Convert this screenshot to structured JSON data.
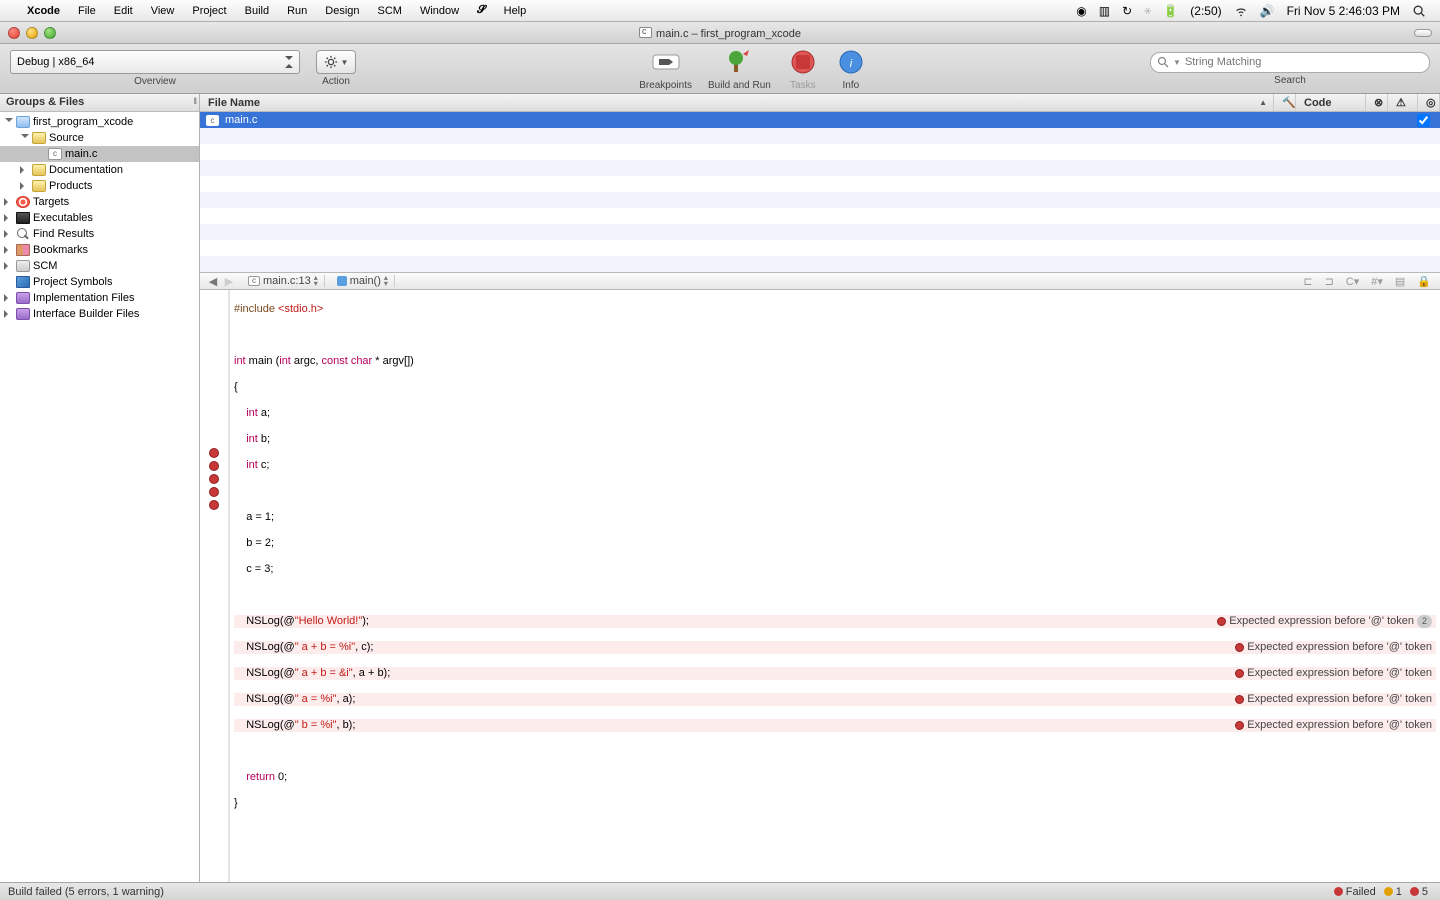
{
  "menubar": {
    "app": "Xcode",
    "items": [
      "File",
      "Edit",
      "View",
      "Project",
      "Build",
      "Run",
      "Design",
      "SCM",
      "Window"
    ],
    "helpGlyph": "⌘",
    "help": "Help",
    "battery": "(2:50)",
    "clock": "Fri Nov 5  2:46:03 PM"
  },
  "window": {
    "title": "main.c – first_program_xcode"
  },
  "toolbar": {
    "config": "Debug | x86_64",
    "overview": "Overview",
    "action": "Action",
    "breakpoints": "Breakpoints",
    "buildrun": "Build and Run",
    "tasks": "Tasks",
    "info": "Info",
    "searchPlaceholder": "String Matching",
    "search": "Search"
  },
  "sidebar": {
    "header": "Groups & Files",
    "items": [
      {
        "pad": 0,
        "icon": "folder",
        "label": "first_program_xcode",
        "disc": "open"
      },
      {
        "pad": 1,
        "icon": "yfolder",
        "label": "Source",
        "disc": "open"
      },
      {
        "pad": 2,
        "icon": "c",
        "label": "main.c",
        "sel": true
      },
      {
        "pad": 1,
        "icon": "yfolder",
        "label": "Documentation",
        "disc": "closed"
      },
      {
        "pad": 1,
        "icon": "yfolder",
        "label": "Products",
        "disc": "closed"
      },
      {
        "pad": 0,
        "icon": "target",
        "label": "Targets",
        "disc": "closed"
      },
      {
        "pad": 0,
        "icon": "exec",
        "label": "Executables",
        "disc": "closed"
      },
      {
        "pad": 0,
        "icon": "mag",
        "label": "Find Results",
        "disc": "closed"
      },
      {
        "pad": 0,
        "icon": "book",
        "label": "Bookmarks",
        "disc": "closed"
      },
      {
        "pad": 0,
        "icon": "db",
        "label": "SCM",
        "disc": "closed"
      },
      {
        "pad": 0,
        "icon": "cube",
        "label": "Project Symbols"
      },
      {
        "pad": 0,
        "icon": "purple",
        "label": "Implementation Files",
        "disc": "closed"
      },
      {
        "pad": 0,
        "icon": "purple",
        "label": "Interface Builder Files",
        "disc": "closed"
      }
    ]
  },
  "filelist": {
    "cols": {
      "name": "File Name",
      "code": "Code"
    },
    "row": "main.c"
  },
  "navbar": {
    "file": "main.c:13",
    "func": "main()"
  },
  "errors": {
    "msg": "Expected expression before '@' token",
    "count": "2"
  },
  "code": {
    "include": "#include ",
    "includeArg": "<stdio.h>",
    "sig1": "int",
    "sig2": " main (",
    "sig3": "int",
    "sig4": " argc, ",
    "sig5": "const",
    "sig6": " ",
    "sig7": "char",
    "sig8": " * argv[])",
    "brace_o": "{",
    "brace_c": "}",
    "decl_a": "    int a;",
    "decl_b": "    int b;",
    "decl_c": "    int c;",
    "asn_a": "    a = 1;",
    "asn_b": "    b = 2;",
    "asn_c": "    c = 3;",
    "log1a": "    NSLog(@",
    "log1b": "\"Hello World!\"",
    "log1c": ");",
    "log2a": "    NSLog(@",
    "log2b": "\" a + b = %i\"",
    "log2c": ", c);",
    "log3a": "    NSLog(@",
    "log3b": "\" a + b = &i\"",
    "log3c": ", a + b);",
    "log4a": "    NSLog(@",
    "log4b": "\" a = %i\"",
    "log4c": ", a);",
    "log5a": "    NSLog(@",
    "log5b": "\" b = %i\"",
    "log5c": ", b);",
    "ret": "    return 0;",
    "kw_decl": "int",
    "kw_ret": "return",
    "num_0": "0"
  },
  "status": {
    "msg": "Build failed (5 errors, 1 warning)",
    "failed": "Failed",
    "warn": "1",
    "err": "5"
  },
  "colors": {
    "selection": "#3874d7",
    "error": "#c93838",
    "keyword": "#b8005c",
    "string": "#c11b17",
    "include": "#7a4a1e"
  }
}
